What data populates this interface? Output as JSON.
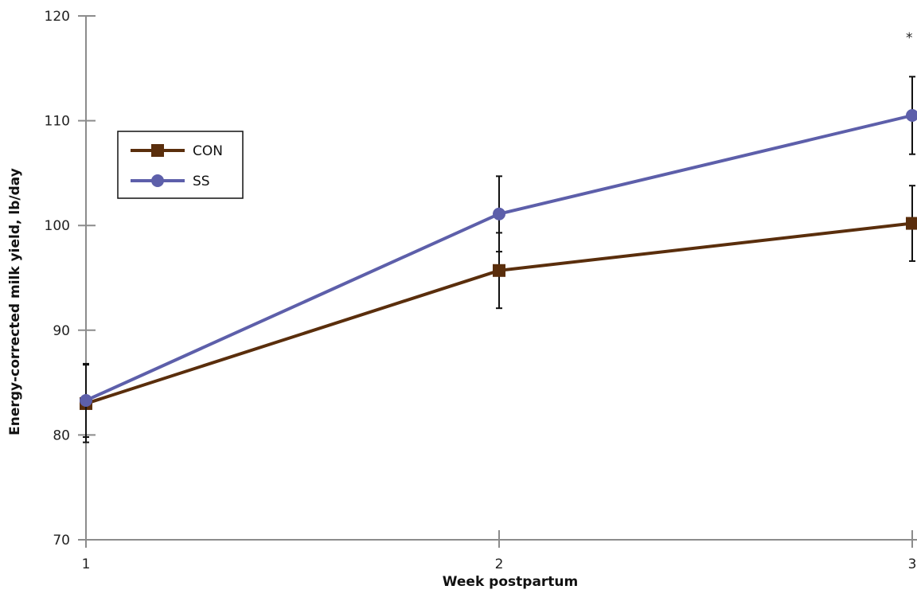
{
  "chart_data": {
    "type": "line",
    "title": "",
    "xlabel": "Week postpartum",
    "ylabel": "Energy-corrected milk yield, lb/day",
    "x": [
      1,
      2,
      3
    ],
    "x_tick_labels": [
      "1",
      "2",
      "3"
    ],
    "ylim": [
      70,
      120
    ],
    "y_ticks": [
      70,
      80,
      90,
      100,
      110,
      120
    ],
    "grid": false,
    "legend_position": "upper-left",
    "series": [
      {
        "name": "CON",
        "color": "#5a2e0c",
        "marker": "square",
        "values": [
          83.0,
          95.7,
          100.2
        ],
        "error": [
          3.7,
          3.6,
          3.6
        ]
      },
      {
        "name": "SS",
        "color": "#5d5faa",
        "marker": "circle",
        "values": [
          83.3,
          101.1,
          110.5
        ],
        "error": [
          3.5,
          3.6,
          3.7
        ]
      }
    ],
    "annotations": [
      {
        "text": "*",
        "x": 3,
        "y": 117.5
      }
    ]
  }
}
